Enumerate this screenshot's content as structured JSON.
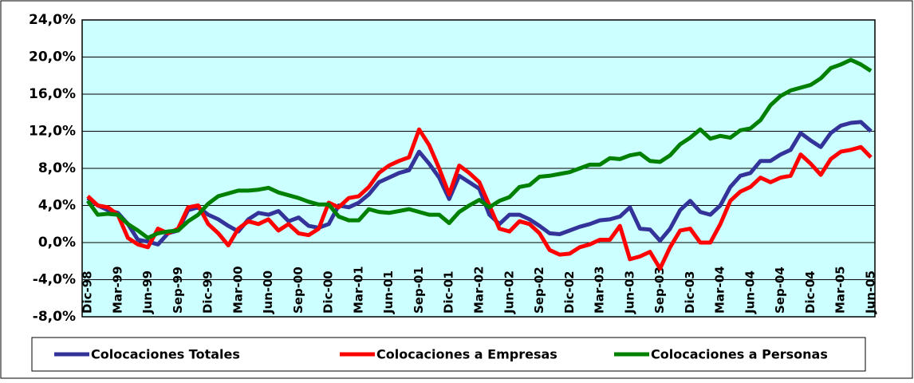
{
  "chart_data": {
    "type": "line",
    "categories": [
      "Dic-98",
      null,
      null,
      "Mar-99",
      null,
      null,
      "Jun-99",
      null,
      null,
      "Sep-99",
      null,
      null,
      "Dic-99",
      null,
      null,
      "Mar-00",
      null,
      null,
      "Jun-00",
      null,
      null,
      "Sep-00",
      null,
      null,
      "Dic-00",
      null,
      null,
      "Mar-01",
      null,
      null,
      "Jun-01",
      null,
      null,
      "Sep-01",
      null,
      null,
      "Dic-01",
      null,
      null,
      "Mar-02",
      null,
      null,
      "Jun-02",
      null,
      null,
      "Sep-02",
      null,
      null,
      "Dic-02",
      null,
      null,
      "Mar-03",
      null,
      null,
      "Jun-03",
      null,
      null,
      "Sep-03",
      null,
      null,
      "Dic-03",
      null,
      null,
      "Mar-04",
      null,
      null,
      "Jun-04",
      null,
      null,
      "Sep-04",
      null,
      null,
      "Dic-04",
      null,
      null,
      "Mar-05",
      null,
      null,
      "Jun-05"
    ],
    "series": [
      {
        "name": "Colocaciones Totales",
        "color": "#333399",
        "values": [
          4.8,
          4.0,
          3.5,
          3.2,
          2.0,
          0.3,
          0.1,
          -0.2,
          1.0,
          1.3,
          3.5,
          3.8,
          3.0,
          2.5,
          1.8,
          1.2,
          2.5,
          3.2,
          3.0,
          3.4,
          2.3,
          2.7,
          1.8,
          1.6,
          2.0,
          4.0,
          3.8,
          4.3,
          5.2,
          6.5,
          7.0,
          7.5,
          7.8,
          9.8,
          8.5,
          7.0,
          4.7,
          7.2,
          6.5,
          5.8,
          3.0,
          2.0,
          3.0,
          3.0,
          2.5,
          1.8,
          1.0,
          0.9,
          1.3,
          1.7,
          2.0,
          2.4,
          2.5,
          2.8,
          3.8,
          1.5,
          1.4,
          0.2,
          1.5,
          3.5,
          4.5,
          3.3,
          3.0,
          4.0,
          6.0,
          7.2,
          7.5,
          8.8,
          8.8,
          9.5,
          10.0,
          11.8,
          11.0,
          10.3,
          11.8,
          12.6,
          12.9,
          13.0,
          12.0
        ]
      },
      {
        "name": "Colocaciones a Empresas",
        "color": "#ff0000",
        "values": [
          5.0,
          4.0,
          3.8,
          3.0,
          0.5,
          -0.2,
          -0.5,
          1.5,
          1.0,
          1.5,
          3.8,
          4.0,
          2.0,
          1.0,
          -0.3,
          1.5,
          2.3,
          2.0,
          2.5,
          1.3,
          2.0,
          1.0,
          0.8,
          1.5,
          4.3,
          3.8,
          4.8,
          5.0,
          6.0,
          7.5,
          8.3,
          8.8,
          9.2,
          12.2,
          10.5,
          8.0,
          5.2,
          8.3,
          7.5,
          6.5,
          4.0,
          1.5,
          1.2,
          2.3,
          2.0,
          1.0,
          -0.8,
          -1.3,
          -1.2,
          -0.5,
          -0.2,
          0.3,
          0.3,
          1.8,
          -1.8,
          -1.5,
          -1.0,
          -2.8,
          -0.5,
          1.3,
          1.5,
          0.0,
          0.0,
          2.0,
          4.5,
          5.5,
          6.0,
          7.0,
          6.5,
          7.0,
          7.2,
          9.5,
          8.5,
          7.3,
          9.0,
          9.8,
          10.0,
          10.3,
          9.2
        ]
      },
      {
        "name": "Colocaciones a Personas",
        "color": "#008000",
        "values": [
          4.5,
          3.0,
          3.1,
          3.0,
          2.0,
          1.3,
          0.5,
          1.0,
          1.2,
          1.3,
          2.3,
          3.0,
          4.2,
          5.0,
          5.3,
          5.6,
          5.6,
          5.7,
          5.9,
          5.4,
          5.1,
          4.8,
          4.4,
          4.1,
          4.1,
          2.8,
          2.4,
          2.4,
          3.6,
          3.3,
          3.2,
          3.4,
          3.6,
          3.3,
          3.0,
          3.0,
          2.1,
          3.3,
          4.0,
          4.6,
          3.8,
          4.5,
          4.9,
          6.0,
          6.2,
          7.1,
          7.2,
          7.4,
          7.6,
          8.0,
          8.4,
          8.4,
          9.1,
          9.0,
          9.4,
          9.6,
          8.8,
          8.7,
          9.4,
          10.6,
          11.3,
          12.2,
          11.2,
          11.5,
          11.3,
          12.1,
          12.3,
          13.2,
          14.8,
          15.8,
          16.4,
          16.7,
          17.0,
          17.7,
          18.8,
          19.2,
          19.7,
          19.2,
          18.5
        ]
      }
    ],
    "ylim": [
      -8,
      24
    ],
    "yticks": [
      {
        "value": -8,
        "label": "-8,0%"
      },
      {
        "value": -4,
        "label": "-4,0%"
      },
      {
        "value": 0,
        "label": "0,0%"
      },
      {
        "value": 4,
        "label": "4,0%"
      },
      {
        "value": 8,
        "label": "8,0%"
      },
      {
        "value": 12,
        "label": "12,0%"
      },
      {
        "value": 16,
        "label": "16,0%"
      },
      {
        "value": 20,
        "label": "20,0%"
      },
      {
        "value": 24,
        "label": "24,0%"
      }
    ],
    "grid": true,
    "legend": "bottom",
    "plot_background": "#ccffff"
  }
}
